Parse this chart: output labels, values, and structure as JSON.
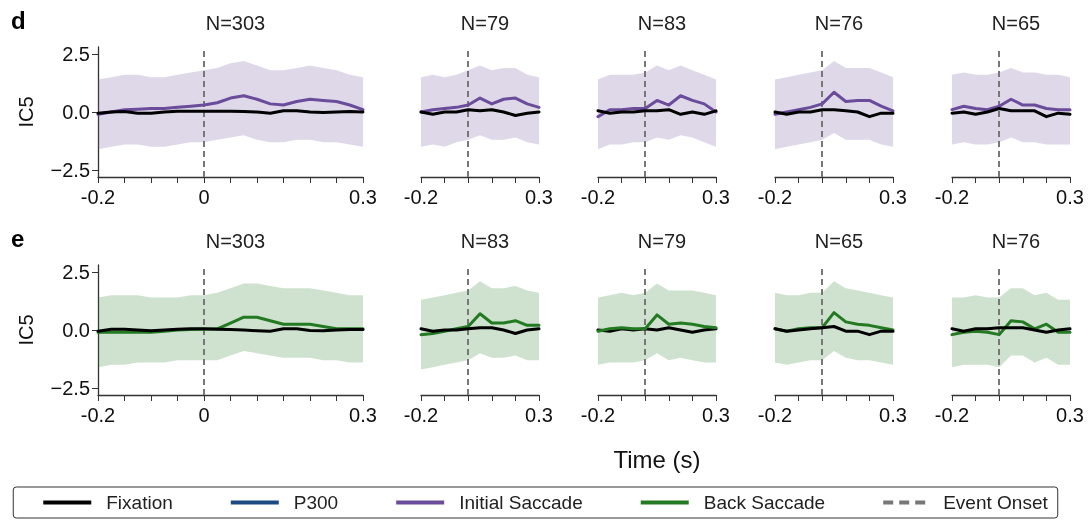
{
  "chart_data": [
    {
      "type": "line",
      "title": "N=303",
      "ylabel": "IC5",
      "annotations": [
        "d"
      ],
      "x": [
        -0.2,
        -0.175,
        -0.15,
        -0.125,
        -0.1,
        -0.075,
        -0.05,
        -0.025,
        0,
        0.025,
        0.05,
        0.075,
        0.1,
        0.125,
        0.15,
        0.175,
        0.2,
        0.225,
        0.25,
        0.275,
        0.3
      ],
      "xlim": [
        -0.2,
        0.3
      ],
      "ylim": [
        -2.8,
        2.8
      ],
      "xticks": [
        -0.2,
        {
          "value": -0.15,
          "label": null
        },
        {
          "value": -0.1,
          "label": null
        },
        {
          "value": -0.05,
          "label": null
        },
        0,
        {
          "value": 0.05,
          "label": null
        },
        {
          "value": 0.1,
          "label": null
        },
        {
          "value": 0.15,
          "label": null
        },
        {
          "value": 0.2,
          "label": null
        },
        {
          "value": 0.25,
          "label": null
        },
        0.3
      ],
      "yticks": [
        {
          "value": -2.5,
          "label": "−2.5"
        },
        {
          "value": 0,
          "label": "0.0"
        },
        {
          "value": 2.5,
          "label": "2.5"
        }
      ],
      "series": [
        {
          "color": "#6b4c9a",
          "values": [
            -0.1,
            0,
            0.1,
            0.12,
            0.15,
            0.15,
            0.2,
            0.25,
            0.3,
            0.4,
            0.6,
            0.7,
            0.55,
            0.35,
            0.3,
            0.45,
            0.55,
            0.5,
            0.45,
            0.3,
            0.1
          ],
          "lower": [
            -1.6,
            -1.5,
            -1.4,
            -1.4,
            -1.5,
            -1.5,
            -1.4,
            -1.3,
            -1.3,
            -1.2,
            -1.1,
            -1.0,
            -1.2,
            -1.3,
            -1.3,
            -1.2,
            -1.2,
            -1.3,
            -1.3,
            -1.4,
            -1.5
          ],
          "upper": [
            1.4,
            1.5,
            1.6,
            1.6,
            1.5,
            1.5,
            1.6,
            1.7,
            1.8,
            1.9,
            2.1,
            2.2,
            2.0,
            1.8,
            1.8,
            1.9,
            2.0,
            1.9,
            1.8,
            1.6,
            1.5
          ]
        },
        {
          "color": "#000000",
          "values": [
            -0.05,
            0,
            0.02,
            -0.05,
            -0.05,
            0,
            0.03,
            0.03,
            0.03,
            0.03,
            0.03,
            0.02,
            0,
            -0.05,
            0.05,
            0.05,
            0,
            -0.02,
            0,
            0.02,
            0
          ]
        }
      ],
      "ref_lines": [
        {
          "axis": "x",
          "value": 0,
          "label": null,
          "color": "#777777",
          "line_style": "dashed"
        }
      ]
    },
    {
      "type": "line",
      "title": "N=79",
      "tick_labels": "x",
      "x": [
        -0.2,
        -0.15,
        -0.1,
        -0.05,
        0,
        0.05,
        0.1,
        0.15,
        0.2,
        0.25,
        0.3
      ],
      "xlim": [
        -0.2,
        0.3
      ],
      "ylim": [
        -2.8,
        2.8
      ],
      "xticks": [
        -0.2,
        {
          "value": -0.1,
          "label": null
        },
        {
          "value": 0,
          "label": null
        },
        {
          "value": 0.1,
          "label": null
        },
        {
          "value": 0.2,
          "label": null
        },
        0.3
      ],
      "series": [
        {
          "color": "#6b4c9a",
          "values": [
            0,
            0.1,
            0.15,
            0.2,
            0.3,
            0.6,
            0.35,
            0.55,
            0.6,
            0.35,
            0.2
          ],
          "lower": [
            -1.5,
            -1.4,
            -1.5,
            -1.3,
            -1.2,
            -1.0,
            -1.2,
            -1.2,
            -1.1,
            -1.3,
            -1.4
          ],
          "upper": [
            1.5,
            1.6,
            1.5,
            1.6,
            1.8,
            2.0,
            1.8,
            1.9,
            1.9,
            1.6,
            1.5
          ]
        },
        {
          "color": "#000000",
          "values": [
            0,
            -0.1,
            0,
            0,
            0.1,
            0.05,
            0.1,
            0,
            -0.15,
            -0.05,
            0
          ]
        }
      ],
      "ref_lines": [
        {
          "axis": "x",
          "value": 0,
          "label": null,
          "color": "#777777",
          "line_style": "dashed"
        }
      ]
    },
    {
      "type": "line",
      "title": "N=83",
      "tick_labels": "x",
      "x": [
        -0.2,
        -0.15,
        -0.1,
        -0.05,
        0,
        0.05,
        0.1,
        0.15,
        0.2,
        0.25,
        0.3
      ],
      "xlim": [
        -0.2,
        0.3
      ],
      "ylim": [
        -2.8,
        2.8
      ],
      "xticks": [
        -0.2,
        {
          "value": -0.1,
          "label": null
        },
        {
          "value": 0,
          "label": null
        },
        {
          "value": 0.1,
          "label": null
        },
        {
          "value": 0.2,
          "label": null
        },
        0.3
      ],
      "series": [
        {
          "color": "#6b4c9a",
          "values": [
            -0.2,
            0.1,
            0.1,
            0.15,
            0.15,
            0.5,
            0.3,
            0.7,
            0.5,
            0.35,
            0
          ],
          "lower": [
            -1.6,
            -1.4,
            -1.4,
            -1.3,
            -1.3,
            -1.1,
            -1.2,
            -1.0,
            -1.1,
            -1.3,
            -1.5
          ],
          "upper": [
            1.4,
            1.6,
            1.6,
            1.6,
            1.7,
            2.0,
            1.8,
            2.0,
            1.8,
            1.6,
            1.4
          ]
        },
        {
          "color": "#000000",
          "values": [
            0.05,
            -0.05,
            0,
            0,
            0.05,
            0.05,
            0.1,
            -0.1,
            0,
            -0.1,
            0.05
          ]
        }
      ],
      "ref_lines": [
        {
          "axis": "x",
          "value": 0,
          "label": null,
          "color": "#777777",
          "line_style": "dashed"
        }
      ]
    },
    {
      "type": "line",
      "title": "N=76",
      "tick_labels": "x",
      "x": [
        -0.2,
        -0.15,
        -0.1,
        -0.05,
        0,
        0.05,
        0.1,
        0.15,
        0.2,
        0.25,
        0.3
      ],
      "xlim": [
        -0.2,
        0.3
      ],
      "ylim": [
        -2.8,
        2.8
      ],
      "xticks": [
        -0.2,
        {
          "value": -0.1,
          "label": null
        },
        {
          "value": 0,
          "label": null
        },
        {
          "value": 0.1,
          "label": null
        },
        {
          "value": 0.2,
          "label": null
        },
        0.3
      ],
      "series": [
        {
          "color": "#6b4c9a",
          "values": [
            -0.1,
            0,
            0.1,
            0.2,
            0.35,
            0.85,
            0.45,
            0.5,
            0.5,
            0.25,
            0.05
          ],
          "lower": [
            -1.6,
            -1.5,
            -1.4,
            -1.3,
            -1.2,
            -0.9,
            -1.2,
            -1.2,
            -1.2,
            -1.4,
            -1.5
          ],
          "upper": [
            1.4,
            1.5,
            1.6,
            1.7,
            1.8,
            2.2,
            1.9,
            1.9,
            1.9,
            1.7,
            1.5
          ]
        },
        {
          "color": "#000000",
          "values": [
            0,
            -0.1,
            0,
            0,
            0.1,
            0.1,
            0.05,
            0,
            -0.2,
            -0.05,
            -0.05
          ]
        }
      ],
      "ref_lines": [
        {
          "axis": "x",
          "value": 0,
          "label": null,
          "color": "#777777",
          "line_style": "dashed"
        }
      ]
    },
    {
      "type": "line",
      "title": "N=65",
      "tick_labels": "x",
      "x": [
        -0.2,
        -0.15,
        -0.1,
        -0.05,
        0,
        0.05,
        0.1,
        0.15,
        0.2,
        0.25,
        0.3
      ],
      "xlim": [
        -0.2,
        0.3
      ],
      "ylim": [
        -2.8,
        2.8
      ],
      "xticks": [
        -0.2,
        {
          "value": -0.1,
          "label": null
        },
        {
          "value": 0,
          "label": null
        },
        {
          "value": 0.1,
          "label": null
        },
        {
          "value": 0.2,
          "label": null
        },
        0.3
      ],
      "series": [
        {
          "color": "#6b4c9a",
          "values": [
            0.1,
            0.25,
            0.15,
            0.1,
            0.25,
            0.55,
            0.3,
            0.3,
            0.15,
            0.1,
            0.1
          ],
          "lower": [
            -1.4,
            -1.3,
            -1.4,
            -1.4,
            -1.3,
            -1.1,
            -1.3,
            -1.3,
            -1.4,
            -1.4,
            -1.4
          ],
          "upper": [
            1.6,
            1.7,
            1.6,
            1.6,
            1.7,
            1.9,
            1.7,
            1.7,
            1.6,
            1.6,
            1.5
          ]
        },
        {
          "color": "#000000",
          "values": [
            -0.05,
            0,
            -0.1,
            0,
            0.15,
            0.05,
            0.05,
            0.05,
            -0.2,
            -0.05,
            -0.1
          ]
        }
      ],
      "ref_lines": [
        {
          "axis": "x",
          "value": 0,
          "label": null,
          "color": "#777777",
          "line_style": "dashed"
        }
      ]
    },
    {
      "type": "line",
      "title": "N=303",
      "ylabel": "IC5",
      "annotations": [
        "e"
      ],
      "x": [
        -0.2,
        -0.175,
        -0.15,
        -0.125,
        -0.1,
        -0.075,
        -0.05,
        -0.025,
        0,
        0.025,
        0.05,
        0.075,
        0.1,
        0.125,
        0.15,
        0.175,
        0.2,
        0.225,
        0.25,
        0.275,
        0.3
      ],
      "xlim": [
        -0.2,
        0.3
      ],
      "ylim": [
        -2.8,
        2.8
      ],
      "xticks": [
        -0.2,
        {
          "value": -0.15,
          "label": null
        },
        {
          "value": -0.1,
          "label": null
        },
        {
          "value": -0.05,
          "label": null
        },
        0,
        {
          "value": 0.05,
          "label": null
        },
        {
          "value": 0.1,
          "label": null
        },
        {
          "value": 0.15,
          "label": null
        },
        {
          "value": 0.2,
          "label": null
        },
        {
          "value": 0.25,
          "label": null
        },
        0.3
      ],
      "yticks": [
        {
          "value": -2.5,
          "label": "−2.5"
        },
        {
          "value": 0,
          "label": "0.0"
        },
        {
          "value": 2.5,
          "label": "2.5"
        }
      ],
      "series": [
        {
          "color": "#237a23",
          "values": [
            -0.1,
            -0.1,
            -0.1,
            -0.1,
            -0.1,
            -0.05,
            0,
            0.02,
            0.03,
            0.05,
            0.3,
            0.55,
            0.55,
            0.4,
            0.25,
            0.25,
            0.25,
            0.15,
            0.05,
            0.05,
            0.05
          ],
          "lower": [
            -1.6,
            -1.5,
            -1.5,
            -1.4,
            -1.4,
            -1.4,
            -1.3,
            -1.3,
            -1.3,
            -1.3,
            -1.1,
            -0.9,
            -1.0,
            -1.1,
            -1.2,
            -1.2,
            -1.2,
            -1.3,
            -1.3,
            -1.4,
            -1.4
          ],
          "upper": [
            1.4,
            1.5,
            1.5,
            1.5,
            1.4,
            1.4,
            1.4,
            1.5,
            1.5,
            1.6,
            1.8,
            2.0,
            2.0,
            1.9,
            1.8,
            1.8,
            1.8,
            1.7,
            1.6,
            1.5,
            1.5
          ]
        },
        {
          "color": "#000000",
          "values": [
            -0.05,
            0.03,
            0.03,
            0,
            -0.03,
            0,
            0.03,
            0.05,
            0.05,
            0.03,
            0.02,
            0,
            -0.03,
            -0.05,
            0.05,
            0.05,
            -0.02,
            -0.03,
            0,
            0.02,
            0.02
          ]
        }
      ],
      "ref_lines": [
        {
          "axis": "x",
          "value": 0,
          "label": null,
          "color": "#777777",
          "line_style": "dashed"
        }
      ]
    },
    {
      "type": "line",
      "title": "N=83",
      "tick_labels": "x",
      "x": [
        -0.2,
        -0.15,
        -0.1,
        -0.05,
        0,
        0.05,
        0.1,
        0.15,
        0.2,
        0.25,
        0.3
      ],
      "xlim": [
        -0.2,
        0.3
      ],
      "ylim": [
        -2.8,
        2.8
      ],
      "xticks": [
        -0.2,
        {
          "value": -0.1,
          "label": null
        },
        {
          "value": 0,
          "label": null
        },
        {
          "value": 0.1,
          "label": null
        },
        {
          "value": 0.2,
          "label": null
        },
        0.3
      ],
      "series": [
        {
          "color": "#237a23",
          "values": [
            -0.2,
            -0.15,
            -0.05,
            0.05,
            0.15,
            0.7,
            0.3,
            0.3,
            0.4,
            0.2,
            0.2
          ],
          "lower": [
            -1.7,
            -1.6,
            -1.5,
            -1.4,
            -1.3,
            -1.0,
            -1.2,
            -1.2,
            -1.1,
            -1.3,
            -1.3
          ],
          "upper": [
            1.3,
            1.4,
            1.5,
            1.6,
            1.7,
            2.1,
            1.8,
            1.8,
            1.9,
            1.7,
            1.6
          ]
        },
        {
          "color": "#000000",
          "values": [
            0.05,
            -0.05,
            0,
            0,
            0.05,
            0.1,
            0.1,
            0,
            -0.15,
            0,
            0.05
          ]
        }
      ],
      "ref_lines": [
        {
          "axis": "x",
          "value": 0,
          "label": null,
          "color": "#777777",
          "line_style": "dashed"
        }
      ]
    },
    {
      "type": "line",
      "title": "N=79",
      "tick_labels": "x",
      "xlabel": "Time (s)",
      "legend": "bottom",
      "x": [
        -0.2,
        -0.15,
        -0.1,
        -0.05,
        0,
        0.05,
        0.1,
        0.15,
        0.2,
        0.25,
        0.3
      ],
      "xlim": [
        -0.2,
        0.3
      ],
      "ylim": [
        -2.8,
        2.8
      ],
      "xticks": [
        -0.2,
        {
          "value": -0.1,
          "label": null
        },
        {
          "value": 0,
          "label": null
        },
        {
          "value": 0.1,
          "label": null
        },
        {
          "value": 0.2,
          "label": null
        },
        0.3
      ],
      "series": [
        {
          "name": "Fixation",
          "color": "#000000",
          "values": [
            0,
            -0.05,
            0.05,
            0,
            0.05,
            0,
            0.1,
            0,
            -0.1,
            0,
            0.05
          ]
        },
        {
          "name": "P300",
          "color": "#1b4b80",
          "values": [
            null,
            null,
            null,
            null,
            null,
            null,
            null,
            null,
            null,
            null,
            null
          ]
        },
        {
          "name": "Initial Saccade",
          "color": "#6b4c9a",
          "values": [
            null,
            null,
            null,
            null,
            null,
            null,
            null,
            null,
            null,
            null,
            null
          ]
        },
        {
          "name": "Back Saccade",
          "color": "#237a23",
          "values": [
            -0.05,
            0.05,
            0.1,
            0.05,
            0.05,
            0.65,
            0.25,
            0.3,
            0.25,
            0.15,
            0.1
          ],
          "lower": [
            -1.5,
            -1.4,
            -1.4,
            -1.4,
            -1.3,
            -1.0,
            -1.3,
            -1.2,
            -1.3,
            -1.4,
            -1.4
          ],
          "upper": [
            1.4,
            1.5,
            1.6,
            1.5,
            1.6,
            2.0,
            1.7,
            1.7,
            1.7,
            1.6,
            1.5
          ]
        }
      ],
      "ref_lines": [
        {
          "axis": "x",
          "value": 0,
          "label": "Event Onset",
          "color": "#777777",
          "line_style": "dashed"
        }
      ]
    },
    {
      "type": "line",
      "title": "N=65",
      "tick_labels": "x",
      "x": [
        -0.2,
        -0.15,
        -0.1,
        -0.05,
        0,
        0.05,
        0.1,
        0.15,
        0.2,
        0.25,
        0.3
      ],
      "xlim": [
        -0.2,
        0.3
      ],
      "ylim": [
        -2.8,
        2.8
      ],
      "xticks": [
        -0.2,
        {
          "value": -0.1,
          "label": null
        },
        {
          "value": 0,
          "label": null
        },
        {
          "value": 0.1,
          "label": null
        },
        {
          "value": 0.2,
          "label": null
        },
        0.3
      ],
      "series": [
        {
          "color": "#237a23",
          "values": [
            0.05,
            -0.05,
            0.05,
            0.1,
            0.1,
            0.75,
            0.35,
            0.25,
            0.2,
            0.1,
            0
          ],
          "lower": [
            -1.4,
            -1.5,
            -1.4,
            -1.3,
            -1.3,
            -0.9,
            -1.2,
            -1.3,
            -1.3,
            -1.4,
            -1.5
          ],
          "upper": [
            1.6,
            1.5,
            1.5,
            1.6,
            1.6,
            2.1,
            1.8,
            1.7,
            1.6,
            1.5,
            1.4
          ]
        },
        {
          "color": "#000000",
          "values": [
            0.05,
            -0.05,
            0,
            0.05,
            0.1,
            0.15,
            -0.05,
            -0.05,
            -0.2,
            -0.05,
            -0.05
          ]
        }
      ],
      "ref_lines": [
        {
          "axis": "x",
          "value": 0,
          "label": null,
          "color": "#777777",
          "line_style": "dashed"
        }
      ]
    },
    {
      "type": "line",
      "title": "N=76",
      "tick_labels": "x",
      "x": [
        -0.2,
        -0.15,
        -0.1,
        -0.05,
        0,
        0.05,
        0.1,
        0.15,
        0.2,
        0.25,
        0.3
      ],
      "xlim": [
        -0.2,
        0.3
      ],
      "ylim": [
        -2.8,
        2.8
      ],
      "xticks": [
        -0.2,
        {
          "value": -0.1,
          "label": null
        },
        {
          "value": 0,
          "label": null
        },
        {
          "value": 0.1,
          "label": null
        },
        {
          "value": 0.2,
          "label": null
        },
        0.3
      ],
      "series": [
        {
          "color": "#237a23",
          "values": [
            -0.2,
            -0.1,
            -0.05,
            -0.1,
            -0.2,
            0.4,
            0.35,
            0.05,
            0.25,
            -0.1,
            -0.1
          ],
          "lower": [
            -1.6,
            -1.5,
            -1.5,
            -1.5,
            -1.6,
            -1.1,
            -1.1,
            -1.4,
            -1.2,
            -1.5,
            -1.5
          ],
          "upper": [
            1.4,
            1.4,
            1.5,
            1.4,
            1.4,
            1.8,
            1.8,
            1.5,
            1.6,
            1.3,
            1.3
          ]
        },
        {
          "color": "#000000",
          "values": [
            0.05,
            -0.05,
            0.05,
            0.05,
            0.1,
            0.1,
            0.1,
            0,
            -0.1,
            0,
            0.05
          ]
        }
      ],
      "ref_lines": [
        {
          "axis": "x",
          "value": 0,
          "label": null,
          "color": "#777777",
          "line_style": "dashed"
        }
      ]
    }
  ]
}
